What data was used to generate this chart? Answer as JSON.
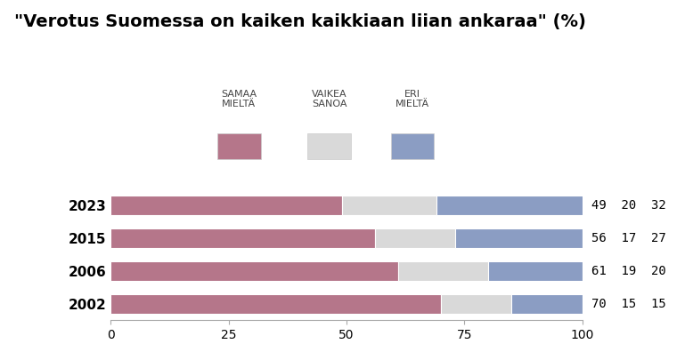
{
  "title": "\"Verotus Suomessa on kaiken kaikkiaan liian ankaraa\" (%)",
  "years": [
    "2023",
    "2015",
    "2006",
    "2002"
  ],
  "samaa_mielta": [
    49,
    56,
    61,
    70
  ],
  "vaikea_sanoa": [
    20,
    17,
    19,
    15
  ],
  "eri_mielta": [
    32,
    27,
    20,
    15
  ],
  "color_samaa": "#b5768a",
  "color_vaikea": "#d9d9d9",
  "color_eri": "#8b9dc3",
  "legend_labels": [
    "SAMAA\nMIELTÄ",
    "VAIKEA\nSANOA",
    "ERI\nMIELTÄ"
  ],
  "xlim": [
    0,
    100
  ],
  "background_color": "#ffffff",
  "title_fontsize": 14,
  "bar_height": 0.6,
  "label_fontsize": 10,
  "tick_fontsize": 10,
  "year_fontsize": 11
}
